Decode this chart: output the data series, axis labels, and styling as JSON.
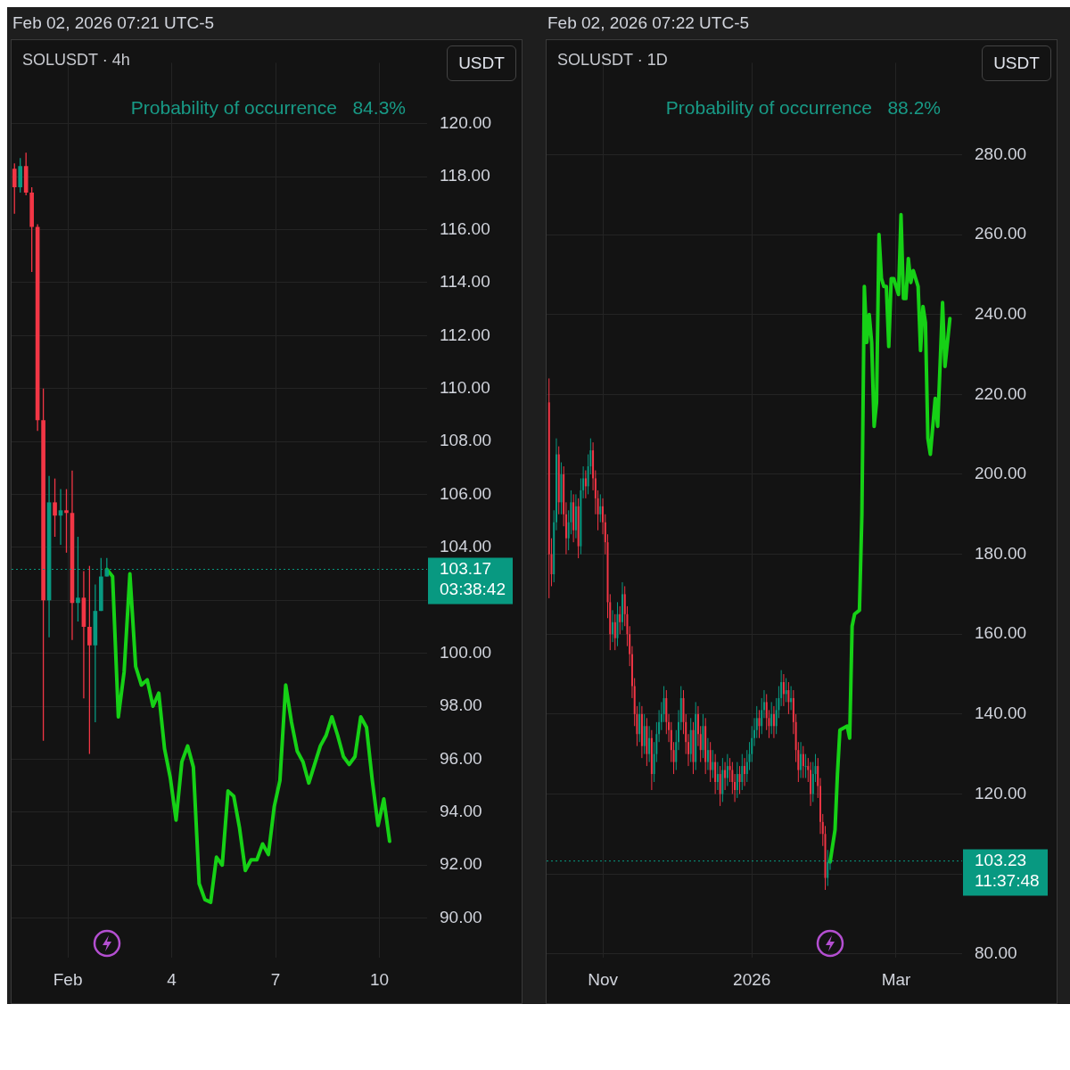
{
  "chart_data": [
    {
      "type": "candlestick",
      "title": "SOLUSDT · 4h",
      "subtitle": "Feb 02, 2026 07:21 UTC-5",
      "ylabel": "USDT",
      "annotations": [
        "Probability of occurrence   84.3%"
      ],
      "grid": true,
      "xlim": [
        "2026-01-30T09:00",
        "2026-02-11T09:00"
      ],
      "xticks": [
        {
          "value": "2026-02-01",
          "label": "Feb"
        },
        {
          "value": "2026-02-04",
          "label": "4"
        },
        {
          "value": "2026-02-07",
          "label": "7"
        },
        {
          "value": "2026-02-10",
          "label": "10"
        }
      ],
      "ylim": [
        88.5,
        122.3
      ],
      "yticks": [
        {
          "value": 90,
          "label": "90.00"
        },
        {
          "value": 92,
          "label": "92.00"
        },
        {
          "value": 94,
          "label": "94.00"
        },
        {
          "value": 96,
          "label": "96.00"
        },
        {
          "value": 98,
          "label": "98.00"
        },
        {
          "value": 100,
          "label": "100.00"
        },
        {
          "value": 102,
          "label": null
        },
        {
          "value": 104,
          "label": "104.00"
        },
        {
          "value": 106,
          "label": "106.00"
        },
        {
          "value": 108,
          "label": "108.00"
        },
        {
          "value": 110,
          "label": "110.00"
        },
        {
          "value": 112,
          "label": "112.00"
        },
        {
          "value": 114,
          "label": "114.00"
        },
        {
          "value": 116,
          "label": "116.00"
        },
        {
          "value": 118,
          "label": "118.00"
        },
        {
          "value": 120,
          "label": "120.00"
        }
      ],
      "ref_lines": [
        {
          "axis": "y",
          "value": 103.17,
          "label": "103.17\n03:38:42",
          "color": "#089981",
          "line_style": "dotted"
        }
      ],
      "series": [
        {
          "type": "candlestick",
          "x": [
            "2026-01-30T11:00",
            "2026-01-30T15:00",
            "2026-01-30T19:00",
            "2026-01-30T23:00",
            "2026-01-31T03:00",
            "2026-01-31T07:00",
            "2026-01-31T11:00",
            "2026-01-31T15:00",
            "2026-01-31T19:00",
            "2026-01-31T23:00",
            "2026-02-01T03:00",
            "2026-02-01T07:00",
            "2026-02-01T11:00",
            "2026-02-01T15:00",
            "2026-02-01T19:00",
            "2026-02-01T23:00",
            "2026-02-02T03:00"
          ],
          "ohlc": [
            [
              118.3,
              118.5,
              116.6,
              117.6
            ],
            [
              117.6,
              118.7,
              117.4,
              118.4
            ],
            [
              118.4,
              118.9,
              117.3,
              117.4
            ],
            [
              117.4,
              117.6,
              114.4,
              116.1
            ],
            [
              116.1,
              116.2,
              108.4,
              108.8
            ],
            [
              108.8,
              110.0,
              96.7,
              102.0
            ],
            [
              102.0,
              106.7,
              100.6,
              105.7
            ],
            [
              105.7,
              106.6,
              104.4,
              105.2
            ],
            [
              105.2,
              106.2,
              104.1,
              105.4
            ],
            [
              105.4,
              106.2,
              103.8,
              105.3
            ],
            [
              105.3,
              106.9,
              100.5,
              101.9
            ],
            [
              101.9,
              104.4,
              101.2,
              102.1
            ],
            [
              102.1,
              103.1,
              98.3,
              101.0
            ],
            [
              101.0,
              103.3,
              96.2,
              100.3
            ],
            [
              100.3,
              102.6,
              97.4,
              101.6
            ],
            [
              101.6,
              103.6,
              101.6,
              102.9
            ],
            [
              102.9,
              103.6,
              102.9,
              103.17
            ]
          ]
        },
        {
          "type": "line",
          "color": "#16d116",
          "x": [
            "2026-02-02T03:00",
            "2026-02-02T07:00",
            "2026-02-02T11:00",
            "2026-02-02T15:00",
            "2026-02-02T19:00",
            "2026-02-02T23:00",
            "2026-02-03T03:00",
            "2026-02-03T07:00",
            "2026-02-03T11:00",
            "2026-02-03T15:00",
            "2026-02-03T19:00",
            "2026-02-03T23:00",
            "2026-02-04T03:00",
            "2026-02-04T07:00",
            "2026-02-04T11:00",
            "2026-02-04T15:00",
            "2026-02-04T19:00",
            "2026-02-04T23:00",
            "2026-02-05T03:00",
            "2026-02-05T07:00",
            "2026-02-05T11:00",
            "2026-02-05T15:00",
            "2026-02-05T19:00",
            "2026-02-05T23:00",
            "2026-02-06T03:00",
            "2026-02-06T07:00",
            "2026-02-06T11:00",
            "2026-02-06T15:00",
            "2026-02-06T19:00",
            "2026-02-06T23:00",
            "2026-02-07T03:00",
            "2026-02-07T07:00",
            "2026-02-07T11:00",
            "2026-02-07T15:00",
            "2026-02-07T19:00",
            "2026-02-07T23:00",
            "2026-02-08T03:00",
            "2026-02-08T07:00",
            "2026-02-08T11:00",
            "2026-02-08T15:00",
            "2026-02-08T19:00",
            "2026-02-08T23:00",
            "2026-02-09T03:00",
            "2026-02-09T07:00",
            "2026-02-09T11:00",
            "2026-02-09T15:00",
            "2026-02-09T19:00",
            "2026-02-09T23:00",
            "2026-02-10T03:00",
            "2026-02-10T07:00"
          ],
          "values": [
            103.17,
            102.9,
            97.6,
            99.3,
            103.0,
            99.5,
            98.8,
            99.0,
            98.0,
            98.5,
            96.4,
            95.3,
            93.7,
            95.9,
            96.5,
            95.7,
            91.3,
            90.7,
            90.6,
            92.3,
            92.0,
            94.8,
            94.6,
            93.4,
            91.8,
            92.2,
            92.2,
            92.8,
            92.4,
            94.2,
            95.2,
            98.8,
            97.4,
            96.3,
            95.9,
            95.1,
            95.8,
            96.5,
            96.9,
            97.6,
            96.9,
            96.1,
            95.8,
            96.1,
            97.6,
            97.2,
            95.2,
            93.5,
            94.5,
            92.9
          ]
        }
      ]
    },
    {
      "type": "candlestick",
      "title": "SOLUSDT · 1D",
      "subtitle": "Feb 02, 2026 07:22 UTC-5",
      "ylabel": "USDT",
      "annotations": [
        "Probability of occurrence   88.2%"
      ],
      "grid": true,
      "xlim": [
        "2025-10-09",
        "2026-03-28"
      ],
      "xticks": [
        {
          "value": "2025-11-01",
          "label": "Nov"
        },
        {
          "value": "2026-01-01",
          "label": "2026"
        },
        {
          "value": "2026-03-01",
          "label": "Mar"
        }
      ],
      "ylim": [
        79,
        303
      ],
      "yticks": [
        {
          "value": 80,
          "label": "80.00"
        },
        {
          "value": 100,
          "label": null
        },
        {
          "value": 120,
          "label": "120.00"
        },
        {
          "value": 140,
          "label": "140.00"
        },
        {
          "value": 160,
          "label": "160.00"
        },
        {
          "value": 180,
          "label": "180.00"
        },
        {
          "value": 200,
          "label": "200.00"
        },
        {
          "value": 220,
          "label": "220.00"
        },
        {
          "value": 240,
          "label": "240.00"
        },
        {
          "value": 260,
          "label": "260.00"
        },
        {
          "value": 280,
          "label": "280.00"
        }
      ],
      "ref_lines": [
        {
          "axis": "y",
          "value": 103.23,
          "label": "103.23\n11:37:48",
          "color": "#089981",
          "line_style": "dotted"
        }
      ],
      "series": [
        {
          "type": "candlestick",
          "x": [
            "2025-10-10",
            "2025-10-11",
            "2025-10-12",
            "2025-10-13",
            "2025-10-14",
            "2025-10-15",
            "2025-10-16",
            "2025-10-17",
            "2025-10-18",
            "2025-10-19",
            "2025-10-20",
            "2025-10-21",
            "2025-10-22",
            "2025-10-23",
            "2025-10-24",
            "2025-10-25",
            "2025-10-26",
            "2025-10-27",
            "2025-10-28",
            "2025-10-29",
            "2025-10-30",
            "2025-10-31",
            "2025-11-01",
            "2025-11-02",
            "2025-11-03",
            "2025-11-04",
            "2025-11-05",
            "2025-11-06",
            "2025-11-07",
            "2025-11-08",
            "2025-11-09",
            "2025-11-10",
            "2025-11-11",
            "2025-11-12",
            "2025-11-13",
            "2025-11-14",
            "2025-11-15",
            "2025-11-16",
            "2025-11-17",
            "2025-11-18",
            "2025-11-19",
            "2025-11-20",
            "2025-11-21",
            "2025-11-22",
            "2025-11-23",
            "2025-11-24",
            "2025-11-25",
            "2025-11-26",
            "2025-11-27",
            "2025-11-28",
            "2025-11-29",
            "2025-11-30",
            "2025-12-01",
            "2025-12-02",
            "2025-12-03",
            "2025-12-04",
            "2025-12-05",
            "2025-12-06",
            "2025-12-07",
            "2025-12-08",
            "2025-12-09",
            "2025-12-10",
            "2025-12-11",
            "2025-12-12",
            "2025-12-13",
            "2025-12-14",
            "2025-12-15",
            "2025-12-16",
            "2025-12-17",
            "2025-12-18",
            "2025-12-19",
            "2025-12-20",
            "2025-12-21",
            "2025-12-22",
            "2025-12-23",
            "2025-12-24",
            "2025-12-25",
            "2025-12-26",
            "2025-12-27",
            "2025-12-28",
            "2025-12-29",
            "2025-12-30",
            "2025-12-31",
            "2026-01-01",
            "2026-01-02",
            "2026-01-03",
            "2026-01-04",
            "2026-01-05",
            "2026-01-06",
            "2026-01-07",
            "2026-01-08",
            "2026-01-09",
            "2026-01-10",
            "2026-01-11",
            "2026-01-12",
            "2026-01-13",
            "2026-01-14",
            "2026-01-15",
            "2026-01-16",
            "2026-01-17",
            "2026-01-18",
            "2026-01-19",
            "2026-01-20",
            "2026-01-21",
            "2026-01-22",
            "2026-01-23",
            "2026-01-24",
            "2026-01-25",
            "2026-01-26",
            "2026-01-27",
            "2026-01-28",
            "2026-01-29",
            "2026-01-30",
            "2026-01-31",
            "2026-02-01",
            "2026-02-02"
          ],
          "ohlc": [
            [
              218,
              224,
              169,
              180
            ],
            [
              180,
              184,
              172,
              175
            ],
            [
              175,
              191,
              173,
              188
            ],
            [
              188,
              209,
              186,
              205
            ],
            [
              205,
              207,
              190,
              193
            ],
            [
              193,
              203,
              190,
              200
            ],
            [
              200,
              202,
              187,
              190
            ],
            [
              190,
              193,
              180,
              184
            ],
            [
              184,
              191,
              181,
              188
            ],
            [
              188,
              196,
              185,
              193
            ],
            [
              193,
              195,
              183,
              186
            ],
            [
              186,
              195,
              184,
              192
            ],
            [
              192,
              194,
              179,
              182
            ],
            [
              182,
              199,
              180,
              196
            ],
            [
              196,
              202,
              194,
              199
            ],
            [
              199,
              201,
              194,
              197
            ],
            [
              197,
              205,
              195,
              202
            ],
            [
              202,
              209,
              200,
              206
            ],
            [
              206,
              208,
              196,
              199
            ],
            [
              199,
              201,
              190,
              194
            ],
            [
              194,
              196,
              186,
              190
            ],
            [
              190,
              195,
              188,
              192
            ],
            [
              192,
              194,
              185,
              188
            ],
            [
              188,
              190,
              180,
              183
            ],
            [
              183,
              185,
              164,
              168
            ],
            [
              168,
              170,
              156,
              160
            ],
            [
              160,
              166,
              158,
              163
            ],
            [
              163,
              165,
              156,
              159
            ],
            [
              159,
              168,
              157,
              165
            ],
            [
              165,
              167,
              160,
              163
            ],
            [
              163,
              173,
              161,
              170
            ],
            [
              170,
              172,
              162,
              165
            ],
            [
              165,
              167,
              157,
              160
            ],
            [
              160,
              162,
              152,
              155
            ],
            [
              155,
              157,
              144,
              147
            ],
            [
              147,
              149,
              137,
              140
            ],
            [
              140,
              142,
              132,
              135
            ],
            [
              135,
              143,
              133,
              140
            ],
            [
              140,
              142,
              129,
              132
            ],
            [
              132,
              140,
              130,
              137
            ],
            [
              137,
              139,
              127,
              130
            ],
            [
              130,
              137,
              128,
              134
            ],
            [
              134,
              136,
              121,
              125
            ],
            [
              125,
              133,
              123,
              130
            ],
            [
              130,
              138,
              128,
              135
            ],
            [
              135,
              141,
              133,
              138
            ],
            [
              138,
              143,
              136,
              140
            ],
            [
              140,
              147,
              138,
              144
            ],
            [
              144,
              146,
              135,
              138
            ],
            [
              138,
              140,
              133,
              136
            ],
            [
              136,
              138,
              128,
              131
            ],
            [
              131,
              133,
              125,
              128
            ],
            [
              128,
              136,
              126,
              133
            ],
            [
              133,
              141,
              131,
              138
            ],
            [
              138,
              147,
              136,
              144
            ],
            [
              144,
              146,
              135,
              138
            ],
            [
              138,
              140,
              130,
              133
            ],
            [
              133,
              135,
              127,
              130
            ],
            [
              130,
              139,
              128,
              136
            ],
            [
              136,
              138,
              125,
              128
            ],
            [
              128,
              143,
              126,
              140
            ],
            [
              140,
              142,
              132,
              135
            ],
            [
              135,
              137,
              128,
              131
            ],
            [
              131,
              140,
              129,
              137
            ],
            [
              137,
              139,
              125,
              128
            ],
            [
              128,
              134,
              126,
              131
            ],
            [
              131,
              133,
              123,
              126
            ],
            [
              126,
              131,
              124,
              128
            ],
            [
              128,
              130,
              120,
              123
            ],
            [
              123,
              128,
              121,
              125
            ],
            [
              125,
              127,
              117,
              120
            ],
            [
              120,
              129,
              118,
              126
            ],
            [
              126,
              128,
              121,
              124
            ],
            [
              124,
              130,
              122,
              127
            ],
            [
              127,
              129,
              123,
              126
            ],
            [
              126,
              128,
              120,
              123
            ],
            [
              123,
              125,
              118,
              121
            ],
            [
              121,
              128,
              119,
              125
            ],
            [
              125,
              127,
              120,
              123
            ],
            [
              123,
              130,
              121,
              127
            ],
            [
              127,
              129,
              122,
              125
            ],
            [
              125,
              131,
              123,
              128
            ],
            [
              128,
              133,
              126,
              130
            ],
            [
              130,
              137,
              128,
              134
            ],
            [
              134,
              139,
              132,
              136
            ],
            [
              136,
              142,
              134,
              139
            ],
            [
              139,
              141,
              134,
              137
            ],
            [
              137,
              144,
              135,
              141
            ],
            [
              141,
              146,
              139,
              143
            ],
            [
              143,
              145,
              136,
              139
            ],
            [
              139,
              141,
              134,
              137
            ],
            [
              137,
              143,
              135,
              140
            ],
            [
              140,
              142,
              134,
              137
            ],
            [
              137,
              144,
              135,
              141
            ],
            [
              141,
              147,
              139,
              144
            ],
            [
              144,
              151,
              142,
              148
            ],
            [
              148,
              150,
              142,
              145
            ],
            [
              145,
              149,
              143,
              146
            ],
            [
              146,
              148,
              140,
              143
            ],
            [
              143,
              147,
              141,
              144
            ],
            [
              144,
              146,
              135,
              138
            ],
            [
              138,
              140,
              128,
              131
            ],
            [
              131,
              133,
              123,
              126
            ],
            [
              126,
              133,
              124,
              130
            ],
            [
              130,
              132,
              124,
              127
            ],
            [
              127,
              130,
              124,
              127
            ],
            [
              127,
              129,
              123,
              126
            ],
            [
              126,
              128,
              117,
              120
            ],
            [
              120,
              128,
              118,
              125
            ],
            [
              125,
              130,
              123,
              127
            ],
            [
              127,
              129,
              119,
              122
            ],
            [
              122,
              124,
              110,
              113
            ],
            [
              113,
              115,
              107,
              110
            ],
            [
              110,
              112,
              96,
              99
            ],
            [
              99,
              106,
              97,
              103
            ],
            [
              103,
              103.23,
              101,
              103.23
            ]
          ]
        },
        {
          "type": "line",
          "color": "#16d116",
          "x": [
            "2026-02-02",
            "2026-02-04",
            "2026-02-05",
            "2026-02-06",
            "2026-02-09",
            "2026-02-10",
            "2026-02-11",
            "2026-02-12",
            "2026-02-14",
            "2026-02-15",
            "2026-02-16",
            "2026-02-17",
            "2026-02-18",
            "2026-02-19",
            "2026-02-20",
            "2026-02-21",
            "2026-02-22",
            "2026-02-23",
            "2026-02-24",
            "2026-02-25",
            "2026-02-26",
            "2026-02-27",
            "2026-02-28",
            "2026-03-02",
            "2026-03-03",
            "2026-03-04",
            "2026-03-05",
            "2026-03-06",
            "2026-03-07",
            "2026-03-08",
            "2026-03-09",
            "2026-03-10",
            "2026-03-11",
            "2026-03-12",
            "2026-03-13",
            "2026-03-14",
            "2026-03-15",
            "2026-03-17",
            "2026-03-18",
            "2026-03-20",
            "2026-03-21",
            "2026-03-23"
          ],
          "values": [
            103,
            111,
            125,
            136,
            137,
            134,
            162,
            165,
            166,
            190,
            247,
            233,
            240,
            233,
            212,
            218,
            260,
            249,
            247,
            247,
            232,
            249,
            249,
            245,
            265,
            244,
            244,
            254,
            248,
            251,
            249,
            247,
            231,
            242,
            238,
            209,
            205,
            219,
            212,
            243,
            227,
            239
          ]
        }
      ]
    }
  ]
}
